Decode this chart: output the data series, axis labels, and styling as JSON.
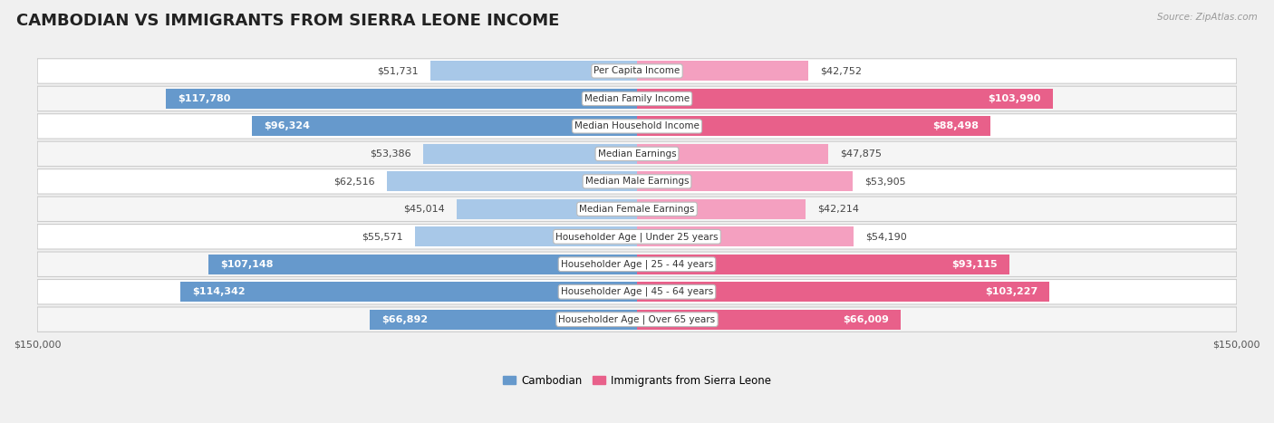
{
  "title": "CAMBODIAN VS IMMIGRANTS FROM SIERRA LEONE INCOME",
  "source": "Source: ZipAtlas.com",
  "categories": [
    "Per Capita Income",
    "Median Family Income",
    "Median Household Income",
    "Median Earnings",
    "Median Male Earnings",
    "Median Female Earnings",
    "Householder Age | Under 25 years",
    "Householder Age | 25 - 44 years",
    "Householder Age | 45 - 64 years",
    "Householder Age | Over 65 years"
  ],
  "cambodian_values": [
    51731,
    117780,
    96324,
    53386,
    62516,
    45014,
    55571,
    107148,
    114342,
    66892
  ],
  "sierraleone_values": [
    42752,
    103990,
    88498,
    47875,
    53905,
    42214,
    54190,
    93115,
    103227,
    66009
  ],
  "cambodian_labels": [
    "$51,731",
    "$117,780",
    "$96,324",
    "$53,386",
    "$62,516",
    "$45,014",
    "$55,571",
    "$107,148",
    "$114,342",
    "$66,892"
  ],
  "sierraleone_labels": [
    "$42,752",
    "$103,990",
    "$88,498",
    "$47,875",
    "$53,905",
    "$42,214",
    "$54,190",
    "$93,115",
    "$103,227",
    "$66,009"
  ],
  "max_value": 150000,
  "cambodian_color_light": "#a8c8e8",
  "cambodian_color_dark": "#6699cc",
  "sierraleone_color_light": "#f4a0c0",
  "sierraleone_color_dark": "#e8608a",
  "bg_color": "#f0f0f0",
  "row_bg": "#ffffff",
  "row_bg_alt": "#f5f5f5",
  "title_fontsize": 13,
  "label_fontsize": 8,
  "category_fontsize": 7.5,
  "axis_label_fontsize": 8,
  "legend_fontsize": 8.5,
  "inside_label_threshold": 65000
}
